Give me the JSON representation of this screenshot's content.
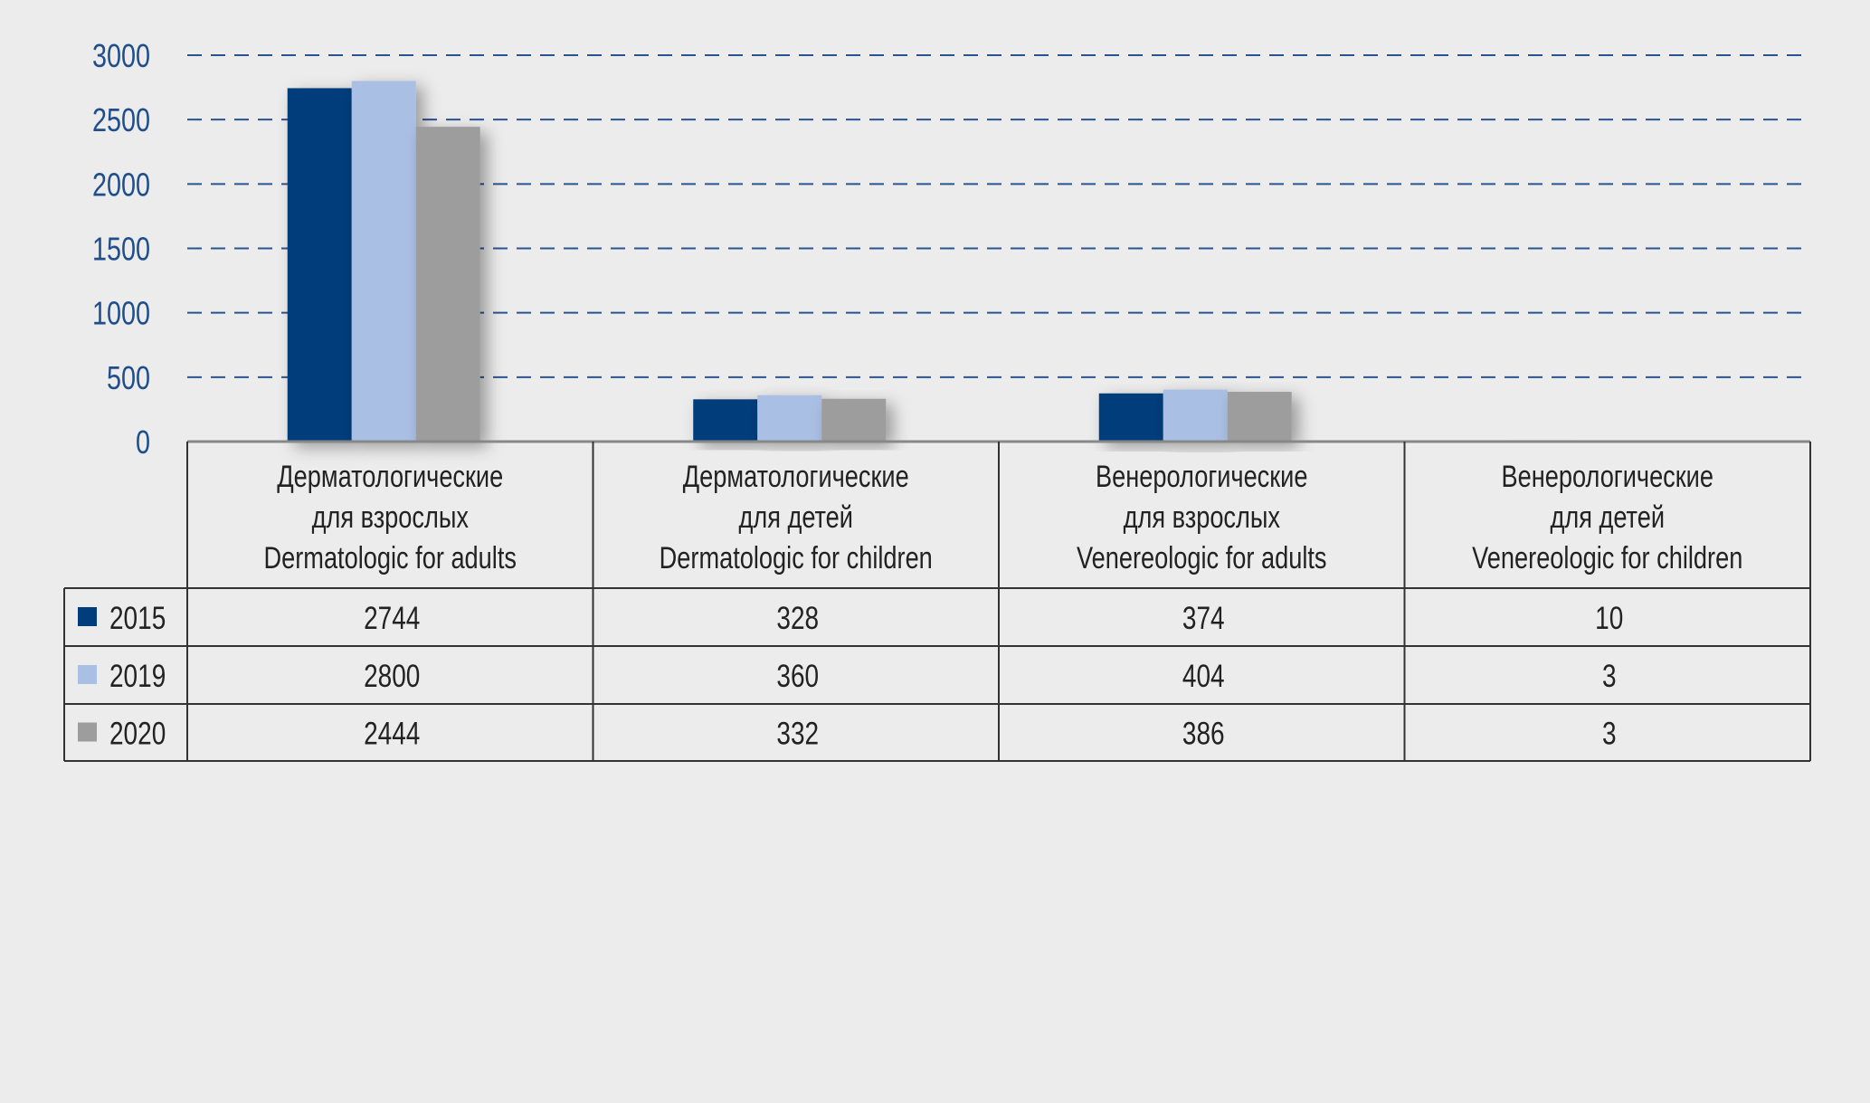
{
  "chart_data": {
    "type": "bar",
    "title": "",
    "xlabel": "",
    "ylabel": "",
    "ylim": [
      0,
      3000
    ],
    "yticks": [
      "0",
      "500",
      "1000",
      "1500",
      "2000",
      "2500",
      "3000"
    ],
    "grid": true,
    "legend_placement": "data-table-left",
    "categories": [
      [
        "Дерматологические",
        "для взрослых",
        "Dermatologic for adults"
      ],
      [
        "Дерматологические",
        "для детей",
        "Dermatologic for children"
      ],
      [
        "Венерологические",
        "для взрослых",
        "Venereologic for adults"
      ],
      [
        "Венерологические",
        "для детей",
        "Venereologic for children"
      ]
    ],
    "series": [
      {
        "name": "2015",
        "color": "#003d7a",
        "values": [
          2744,
          328,
          374,
          10
        ]
      },
      {
        "name": "2019",
        "color": "#aabfe4",
        "values": [
          2800,
          360,
          404,
          3
        ]
      },
      {
        "name": "2020",
        "color": "#9d9d9d",
        "values": [
          2444,
          332,
          386,
          3
        ]
      }
    ]
  }
}
